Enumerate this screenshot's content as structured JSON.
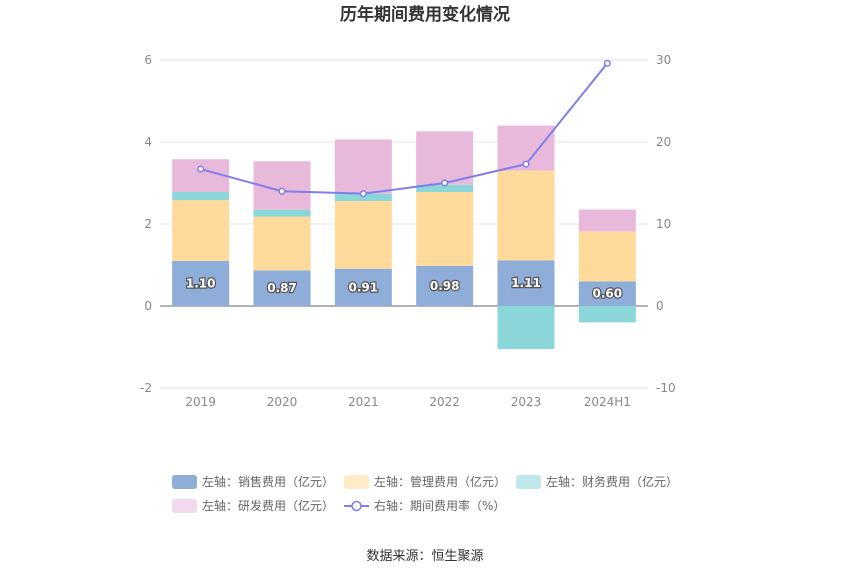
{
  "chart_data": {
    "type": "bar",
    "title": "历年期间费用变化情况",
    "categories": [
      "2019",
      "2020",
      "2021",
      "2022",
      "2023",
      "2024H1"
    ],
    "series": [
      {
        "name": "左轴：销售费用（亿元）",
        "axis": "left",
        "kind": "stacked-bar",
        "color": "#8EADD9",
        "values": [
          1.1,
          0.87,
          0.91,
          0.98,
          1.11,
          0.6
        ],
        "labels": [
          "1.10",
          "0.87",
          "0.91",
          "0.98",
          "1.11",
          "0.60"
        ]
      },
      {
        "name": "左轴：管理费用（亿元）",
        "axis": "left",
        "kind": "stacked-bar",
        "color": "#FFDA9A",
        "values": [
          1.48,
          1.31,
          1.65,
          1.8,
          2.19,
          1.22
        ]
      },
      {
        "name": "左轴：财务费用（亿元）",
        "axis": "left",
        "kind": "stacked-bar",
        "color": "#8AD6D9",
        "values": [
          0.2,
          0.17,
          0.18,
          0.18,
          -1.05,
          -0.4
        ]
      },
      {
        "name": "左轴：研发费用（亿元）",
        "axis": "left",
        "kind": "stacked-bar",
        "color": "#E8B9DA",
        "values": [
          0.8,
          1.18,
          1.32,
          1.3,
          1.1,
          0.53
        ]
      },
      {
        "name": "右轴：期间费用率（%）",
        "axis": "right",
        "kind": "line",
        "color": "#7F7FEB",
        "values": [
          16.7,
          14.0,
          13.7,
          15.0,
          17.3,
          29.6
        ]
      }
    ],
    "y_left": {
      "min": -2,
      "max": 6,
      "ticks": [
        "-2",
        "0",
        "2",
        "4",
        "6"
      ]
    },
    "y_right": {
      "min": -10,
      "max": 30,
      "ticks": [
        "-10",
        "0",
        "10",
        "20",
        "30"
      ]
    },
    "legend_position": "bottom"
  },
  "source": "数据来源：恒生聚源"
}
